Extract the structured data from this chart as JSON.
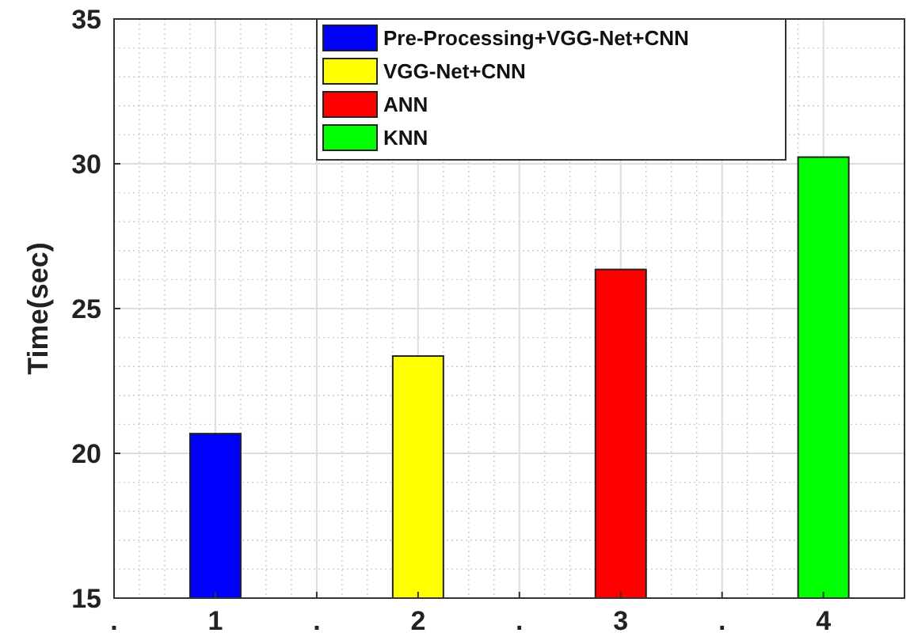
{
  "chart_data": {
    "type": "bar",
    "ylabel": "Time(sec)",
    "series": [
      {
        "name": "Pre-Processing+VGG-Net+CNN",
        "color": "#0000ff",
        "x": [
          1
        ],
        "values": [
          20.68
        ]
      },
      {
        "name": "VGG-Net+CNN",
        "color": "#ffff00",
        "x": [
          2
        ],
        "values": [
          23.36
        ]
      },
      {
        "name": "ANN",
        "color": "#ff0000",
        "x": [
          3
        ],
        "values": [
          26.35
        ]
      },
      {
        "name": "KNN",
        "color": "#00ff00",
        "x": [
          4
        ],
        "values": [
          30.23
        ]
      }
    ],
    "xlim": [
      0.5,
      4.4
    ],
    "xticks": [
      {
        "value": 0.5,
        "label": "."
      },
      1,
      {
        "value": 1.5,
        "label": "."
      },
      2,
      {
        "value": 2.5,
        "label": "."
      },
      3,
      {
        "value": 3.5,
        "label": "."
      },
      4
    ],
    "ylim": [
      15,
      35
    ],
    "yticks": [
      15,
      20,
      25,
      30,
      35
    ],
    "grid": true,
    "legend": "top"
  }
}
